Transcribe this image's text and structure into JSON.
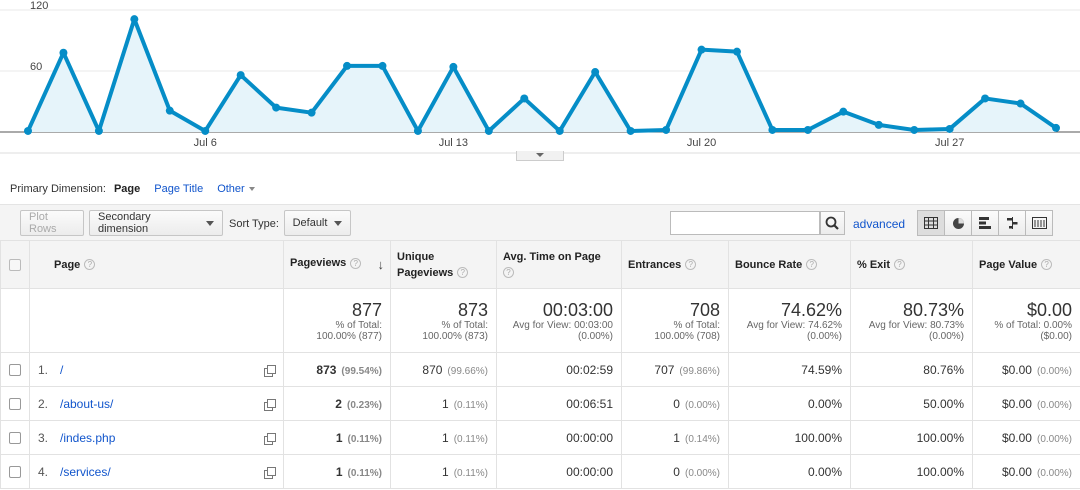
{
  "chart_data": {
    "type": "area",
    "x": [
      "Jul 1",
      "Jul 2",
      "Jul 3",
      "Jul 4",
      "Jul 5",
      "Jul 6",
      "Jul 7",
      "Jul 8",
      "Jul 9",
      "Jul 10",
      "Jul 11",
      "Jul 12",
      "Jul 13",
      "Jul 14",
      "Jul 15",
      "Jul 16",
      "Jul 17",
      "Jul 18",
      "Jul 19",
      "Jul 20",
      "Jul 21",
      "Jul 22",
      "Jul 23",
      "Jul 24",
      "Jul 25",
      "Jul 26",
      "Jul 27",
      "Jul 28",
      "Jul 29",
      "Jul 30"
    ],
    "series": [
      {
        "name": "",
        "values": [
          1,
          78,
          1,
          111,
          21,
          1,
          56,
          24,
          19,
          65,
          65,
          1,
          64,
          1,
          33,
          1,
          59,
          1,
          2,
          81,
          79,
          2,
          2,
          20,
          7,
          2,
          3,
          33,
          28,
          4
        ]
      }
    ],
    "y_ticks": [
      "120",
      "60"
    ],
    "x_ticks": [
      "Jul 6",
      "Jul 13",
      "Jul 20",
      "Jul 27"
    ],
    "ylim": [
      0,
      120
    ],
    "grid": true,
    "color": "#058dc7",
    "fill_color": "#e6f4fa"
  },
  "primary_dimension": {
    "label": "Primary Dimension:",
    "active": "Page",
    "options": [
      "Page Title"
    ],
    "other": "Other"
  },
  "toolbar": {
    "plot_rows": "Plot Rows",
    "secondary_dimension": "Secondary dimension",
    "sort_type_label": "Sort Type:",
    "sort_type_value": "Default",
    "search_value": "",
    "advanced": "advanced",
    "view_icons": [
      "table-view-icon",
      "pie-view-icon",
      "bar-view-icon",
      "comparison-view-icon",
      "pivot-view-icon"
    ]
  },
  "table": {
    "columns": {
      "page": "Page",
      "pageviews": "Pageviews",
      "unique_pageviews": "Unique Pageviews",
      "avg_time": "Avg. Time on Page",
      "entrances": "Entrances",
      "bounce_rate": "Bounce Rate",
      "exit": "% Exit",
      "page_value": "Page Value"
    },
    "totals": {
      "pageviews": {
        "value": "877",
        "l1": "% of Total:",
        "l2": "100.00% (877)"
      },
      "unique_pageviews": {
        "value": "873",
        "l1": "% of Total:",
        "l2": "100.00% (873)"
      },
      "avg_time": {
        "value": "00:03:00",
        "l1": "Avg for View: 00:03:00",
        "l2": "(0.00%)"
      },
      "entrances": {
        "value": "708",
        "l1": "% of Total:",
        "l2": "100.00% (708)"
      },
      "bounce_rate": {
        "value": "74.62%",
        "l1": "Avg for View: 74.62%",
        "l2": "(0.00%)"
      },
      "exit": {
        "value": "80.73%",
        "l1": "Avg for View: 80.73%",
        "l2": "(0.00%)"
      },
      "page_value": {
        "value": "$0.00",
        "l1": "% of Total: 0.00%",
        "l2": "($0.00)"
      }
    },
    "rows": [
      {
        "n": "1.",
        "page": "/",
        "pv": "873",
        "pv_pct": "(99.54%)",
        "upv": "870",
        "upv_pct": "(99.66%)",
        "time": "00:02:59",
        "ent": "707",
        "ent_pct": "(99.86%)",
        "bounce": "74.59%",
        "exit": "80.76%",
        "val": "$0.00",
        "val_pct": "(0.00%)"
      },
      {
        "n": "2.",
        "page": "/about-us/",
        "pv": "2",
        "pv_pct": "(0.23%)",
        "upv": "1",
        "upv_pct": "(0.11%)",
        "time": "00:06:51",
        "ent": "0",
        "ent_pct": "(0.00%)",
        "bounce": "0.00%",
        "exit": "50.00%",
        "val": "$0.00",
        "val_pct": "(0.00%)"
      },
      {
        "n": "3.",
        "page": "/indes.php",
        "pv": "1",
        "pv_pct": "(0.11%)",
        "upv": "1",
        "upv_pct": "(0.11%)",
        "time": "00:00:00",
        "ent": "1",
        "ent_pct": "(0.14%)",
        "bounce": "100.00%",
        "exit": "100.00%",
        "val": "$0.00",
        "val_pct": "(0.00%)"
      },
      {
        "n": "4.",
        "page": "/services/",
        "pv": "1",
        "pv_pct": "(0.11%)",
        "upv": "1",
        "upv_pct": "(0.11%)",
        "time": "00:00:00",
        "ent": "0",
        "ent_pct": "(0.00%)",
        "bounce": "0.00%",
        "exit": "100.00%",
        "val": "$0.00",
        "val_pct": "(0.00%)"
      }
    ]
  }
}
